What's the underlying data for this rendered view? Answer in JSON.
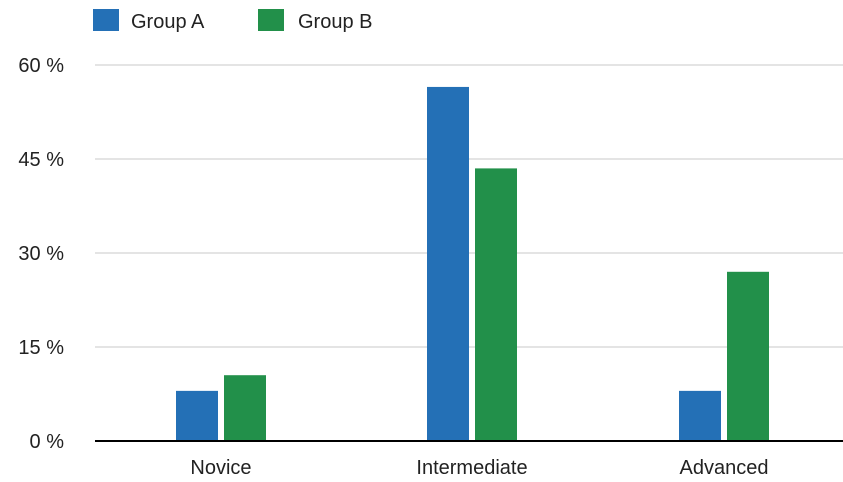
{
  "chart_data": {
    "type": "bar",
    "categories": [
      "Novice",
      "Intermediate",
      "Advanced"
    ],
    "series": [
      {
        "name": "Group A",
        "color": "#2470b6",
        "values": [
          8,
          56.5,
          8
        ]
      },
      {
        "name": "Group B",
        "color": "#22904a",
        "values": [
          10.5,
          43.5,
          27
        ]
      }
    ],
    "y_ticks": [
      {
        "value": 0,
        "label": "0 %"
      },
      {
        "value": 15,
        "label": "15 %"
      },
      {
        "value": 30,
        "label": "30 %"
      },
      {
        "value": 45,
        "label": "45 %"
      },
      {
        "value": 60,
        "label": "60 %"
      }
    ],
    "ylim": [
      0,
      60
    ],
    "grid": true,
    "legend_position": "top-left",
    "title": "",
    "xlabel": "",
    "ylabel": ""
  }
}
